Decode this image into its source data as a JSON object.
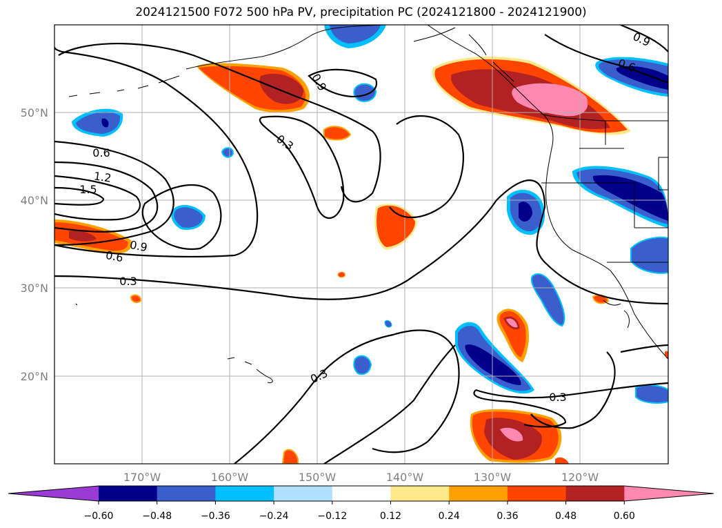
{
  "title": "2024121500 F072 500 hPa PV, precipitation PC (2024121800 - 2024121900)",
  "lon_labels": [
    "170°W",
    "160°W",
    "150°W",
    "140°W",
    "130°W",
    "120°W"
  ],
  "lat_labels": [
    "50°N",
    "40°N",
    "30°N",
    "20°N"
  ],
  "contour_labels": [
    "0.9",
    "0.6",
    "0.9",
    "0.3",
    "0.6",
    "1.2",
    "1.5",
    "0.9",
    "0.6",
    "0.3",
    "0.3",
    "0.3"
  ],
  "colorbar": {
    "tick_labels": [
      "−0.60",
      "−0.48",
      "−0.36",
      "−0.24",
      "−0.12",
      "0.12",
      "0.24",
      "0.36",
      "0.48",
      "0.60"
    ],
    "colors": [
      "#9b3bd6",
      "#00008b",
      "#3a5fcd",
      "#00bfff",
      "#b0e0ff",
      "#ffffff",
      "#ffe88a",
      "#ffa000",
      "#ff4500",
      "#b22222",
      "#ff88b0"
    ]
  },
  "colors": {
    "pos_low": "#ffe88a",
    "pos_mid": "#ffa000",
    "pos_med": "#ff4500",
    "pos_high": "#b22222",
    "pos_max": "#ff88b0",
    "neg_low": "#b0e0ff",
    "neg_mid": "#00bfff",
    "neg_med": "#3a5fcd",
    "neg_high": "#00008b"
  }
}
